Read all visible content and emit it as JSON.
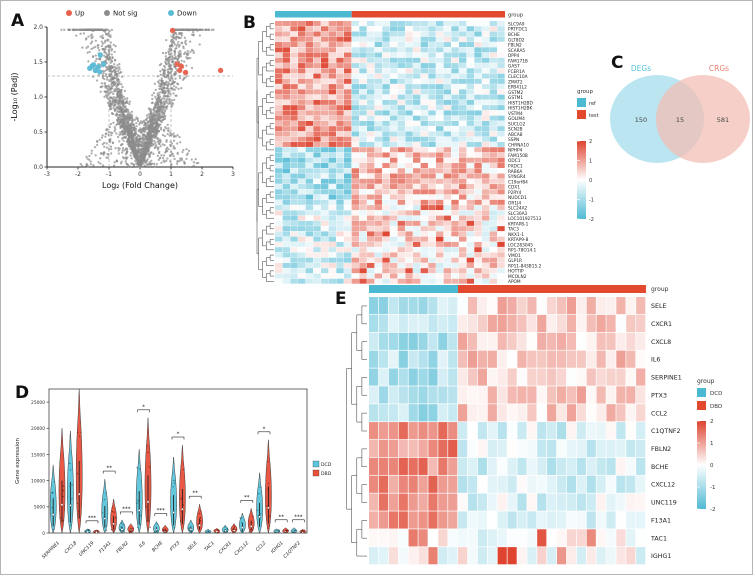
{
  "panels": {
    "a": {
      "label": "A"
    },
    "b": {
      "label": "B"
    },
    "c": {
      "label": "C"
    },
    "d": {
      "label": "D"
    },
    "e": {
      "label": "E"
    }
  },
  "chart_data": [
    {
      "panel": "A",
      "type": "scatter",
      "subtype": "volcano",
      "xlabel": "Log₂ (Fold Change)",
      "ylabel": "-Log₁₀ (Padj)",
      "xlim": [
        -3,
        3
      ],
      "ylim": [
        0,
        2
      ],
      "xticks": [
        -3,
        -2,
        -1,
        0,
        1,
        2,
        3
      ],
      "yticks": [
        "0.0",
        "0.5",
        "1.0",
        "1.5",
        "2.0"
      ],
      "threshold_lines": {
        "vertical": [
          -1,
          1
        ],
        "horizontal": 1.3
      },
      "legend": [
        {
          "label": "Up",
          "color": "#e8604c"
        },
        {
          "label": "Not sig",
          "color": "#8c8c8c"
        },
        {
          "label": "Down",
          "color": "#5bbcd6"
        }
      ],
      "up_points": [
        [
          1.05,
          1.95
        ],
        [
          2.6,
          1.38
        ],
        [
          1.2,
          1.47
        ],
        [
          1.33,
          1.44
        ],
        [
          1.28,
          1.38
        ],
        [
          1.47,
          1.35
        ]
      ],
      "down_points": [
        [
          -1.28,
          1.6
        ],
        [
          -1.5,
          1.46
        ],
        [
          -1.62,
          1.41
        ],
        [
          -1.35,
          1.43
        ],
        [
          -1.18,
          1.47
        ],
        [
          -1.44,
          1.38
        ],
        [
          -1.3,
          1.36
        ],
        [
          -1.55,
          1.44
        ]
      ],
      "background_cloud": {
        "n": 2600,
        "seed": 7,
        "color": "#8c8c8c"
      }
    },
    {
      "panel": "B",
      "type": "heatmap",
      "annotation_title": "group",
      "legend_title": "group",
      "groups": [
        {
          "label": "ref",
          "color": "#4cb9d2",
          "n_cols": 10
        },
        {
          "label": "test",
          "color": "#e2492f",
          "n_cols": 20
        }
      ],
      "colorbar_ticks": [
        2,
        1,
        0,
        -1,
        -2
      ],
      "row_split": 24,
      "seed": 11,
      "genes": [
        "SLC9A9",
        "PRTFDC1",
        "BCHE",
        "GLT8D2",
        "FBLN2",
        "SCARA5",
        "DPP4",
        "FAM171B",
        "GAS7",
        "FCER1A",
        "CLEC10A",
        "ZMAT2",
        "EPB41L2",
        "GSTM2",
        "GSTM1",
        "HIST1H2BD",
        "HIST1H2BK",
        "VSTM4",
        "GOLIM4",
        "SUCLG2",
        "SCN2B",
        "ABCA8",
        "SSPN",
        "CHRNA10",
        "NPHP4",
        "FAM150B",
        "ODC1",
        "PXDC1",
        "RAB6A",
        "SYNGR4",
        "C19orf84",
        "CDX1",
        "P2RY4",
        "NUDCD1",
        "OR1J4",
        "SLC24A2",
        "SLC30A3",
        "LOC101927513",
        "KRTAP8-1",
        "TAC3",
        "NKX1-1",
        "KRTAP9-8",
        "LOC283045",
        "RP1-78O14.1",
        "VMO1",
        "GLP1R",
        "RP11-843B15.2",
        "HOTTIP",
        "MCOLN2",
        "APOM"
      ]
    },
    {
      "panel": "C",
      "type": "venn",
      "sets": [
        {
          "label": "DEGs",
          "count": 150,
          "color": "#aee0ef",
          "label_color": "#56c5dc"
        },
        {
          "label": "CRGs",
          "count": 581,
          "color": "#f3bcb3",
          "label_color": "#ee8070"
        }
      ],
      "intersection": 15
    },
    {
      "panel": "D",
      "type": "violin",
      "ylabel": "Gene expression",
      "yticks": [
        0,
        5000,
        10000,
        15000,
        20000,
        25000
      ],
      "ylim": [
        0,
        27500
      ],
      "groups": [
        {
          "label": "DCD",
          "color": "#5bc6dd"
        },
        {
          "label": "DBD",
          "color": "#e8503a"
        }
      ],
      "categories": [
        "SERPINE1",
        "CXCL8",
        "UNC119",
        "F13A1",
        "FBLN2",
        "IL6",
        "BCHE",
        "PTX3",
        "SELE",
        "TAC1",
        "CXCR1",
        "CXCL12",
        "CCL2",
        "IGHG1",
        "C1QTNF2"
      ],
      "series": [
        {
          "name": "DCD",
          "values": [
            13000,
            19500,
            800,
            10300,
            2500,
            16000,
            2200,
            14500,
            2500,
            700,
            1500,
            3800,
            11500,
            800,
            1000
          ]
        },
        {
          "name": "DBD",
          "values": [
            20000,
            27500,
            600,
            6500,
            1800,
            22000,
            1500,
            16800,
            5500,
            900,
            1800,
            4700,
            17800,
            1000,
            700
          ]
        }
      ],
      "significance": [
        "",
        "",
        "***",
        "**",
        "***",
        "*",
        "***",
        "*",
        "**",
        "",
        "",
        "**",
        "*",
        "**",
        "***"
      ]
    },
    {
      "panel": "E",
      "type": "heatmap",
      "annotation_title": "group",
      "legend_title": "group",
      "groups": [
        {
          "label": "DCD",
          "color": "#4cb9d2",
          "n_cols": 9
        },
        {
          "label": "DBD",
          "color": "#e2492f",
          "n_cols": 19
        }
      ],
      "colorbar_ticks": [
        2,
        1,
        0,
        -1,
        -2
      ],
      "seed": 23,
      "rows": [
        {
          "gene": "SELE",
          "pattern": "low_dcd"
        },
        {
          "gene": "CXCR1",
          "pattern": "low_dcd"
        },
        {
          "gene": "CXCL8",
          "pattern": "low_dcd"
        },
        {
          "gene": "IL6",
          "pattern": "low_dcd"
        },
        {
          "gene": "SERPINE1",
          "pattern": "low_dcd"
        },
        {
          "gene": "PTX3",
          "pattern": "low_dcd"
        },
        {
          "gene": "CCL2",
          "pattern": "low_dcd"
        },
        {
          "gene": "C1QTNF2",
          "pattern": "high_dcd"
        },
        {
          "gene": "FBLN2",
          "pattern": "high_dcd"
        },
        {
          "gene": "BCHE",
          "pattern": "high_dcd"
        },
        {
          "gene": "CXCL12",
          "pattern": "high_dcd"
        },
        {
          "gene": "UNC119",
          "pattern": "high_dcd"
        },
        {
          "gene": "F13A1",
          "pattern": "high_dcd"
        },
        {
          "gene": "TAC1",
          "pattern": "mixed"
        },
        {
          "gene": "IGHG1",
          "pattern": "mixed"
        }
      ]
    }
  ]
}
